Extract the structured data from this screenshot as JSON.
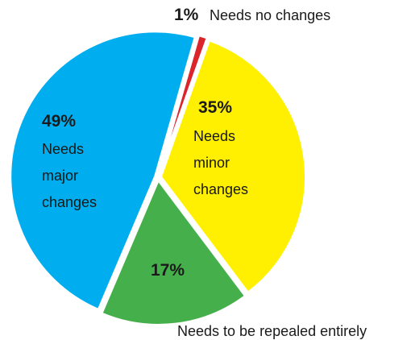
{
  "chart_data": {
    "type": "pie",
    "slices": [
      {
        "pct_label": "1%",
        "value": 1,
        "color": "#d9252b",
        "label_lines": [
          "Needs no changes"
        ]
      },
      {
        "pct_label": "35%",
        "value": 35,
        "color": "#fef000",
        "label_lines": [
          "Needs",
          "minor",
          "changes"
        ]
      },
      {
        "pct_label": "17%",
        "value": 17,
        "color": "#45b04b",
        "label_lines": [
          "Needs to be repealed entirely"
        ]
      },
      {
        "pct_label": "49%",
        "value": 49,
        "color": "#00aeef",
        "label_lines": [
          "Needs",
          "major",
          "changes"
        ]
      }
    ]
  }
}
